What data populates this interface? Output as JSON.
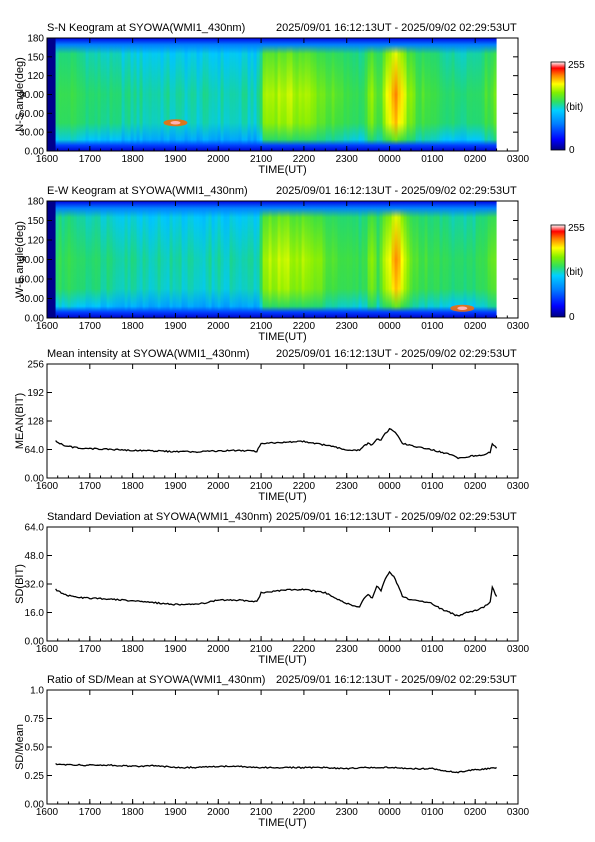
{
  "time_range": "2025/09/01 16:12:13UT - 2025/09/02 02:29:53UT",
  "x_ticks": [
    "1600",
    "1700",
    "1800",
    "1900",
    "2000",
    "2100",
    "2200",
    "2300",
    "0000",
    "0100",
    "0200",
    "0300"
  ],
  "x_label": "TIME(UT)",
  "colors": {
    "line": "#000000",
    "colormap": [
      "#000080",
      "#0000ff",
      "#0080ff",
      "#00c8ff",
      "#20d878",
      "#40e040",
      "#90f000",
      "#ffff00",
      "#ff8000",
      "#ff0000",
      "#ffffff"
    ]
  },
  "chart_data": [
    {
      "type": "heatmap",
      "title": "S-N Keogram at SYOWA(WMI1_430nm)",
      "xlabel": "TIME(UT)",
      "ylabel": "N-S angle(deg)",
      "y_ticks": [
        "0.00",
        "30.00",
        "60.00",
        "90.00",
        "120",
        "150",
        "180"
      ],
      "xlim": [
        16.0,
        27.0
      ],
      "ylim": [
        0,
        180
      ],
      "colorbar": {
        "min": "0",
        "max": "255",
        "unit": "(bit)"
      },
      "data_start": 16.2,
      "data_end": 26.5,
      "brightness_profile": [
        [
          16.2,
          0.45
        ],
        [
          16.5,
          0.48
        ],
        [
          17.0,
          0.42
        ],
        [
          18.0,
          0.38
        ],
        [
          19.0,
          0.36
        ],
        [
          20.0,
          0.36
        ],
        [
          20.95,
          0.36
        ],
        [
          21.0,
          0.62
        ],
        [
          21.5,
          0.64
        ],
        [
          22.0,
          0.62
        ],
        [
          22.5,
          0.55
        ],
        [
          23.0,
          0.48
        ],
        [
          23.4,
          0.46
        ],
        [
          23.5,
          0.62
        ],
        [
          23.7,
          0.5
        ],
        [
          23.9,
          0.66
        ],
        [
          24.1,
          0.8
        ],
        [
          24.3,
          0.66
        ],
        [
          24.6,
          0.52
        ],
        [
          25.0,
          0.48
        ],
        [
          25.5,
          0.42
        ],
        [
          26.0,
          0.44
        ],
        [
          26.4,
          0.55
        ],
        [
          26.5,
          0.6
        ]
      ],
      "hotspot": {
        "x": 19.0,
        "y": 45
      }
    },
    {
      "type": "heatmap",
      "title": "E-W Keogram at SYOWA(WMI1_430nm)",
      "xlabel": "TIME(UT)",
      "ylabel": "W-E angle(deg)",
      "y_ticks": [
        "0.00",
        "30.00",
        "60.00",
        "90.00",
        "120",
        "150",
        "180"
      ],
      "xlim": [
        16.0,
        27.0
      ],
      "ylim": [
        0,
        180
      ],
      "colorbar": {
        "min": "0",
        "max": "255",
        "unit": "(bit)"
      },
      "data_start": 16.2,
      "data_end": 26.5,
      "brightness_profile": [
        [
          16.2,
          0.45
        ],
        [
          16.5,
          0.47
        ],
        [
          17.0,
          0.42
        ],
        [
          18.0,
          0.38
        ],
        [
          19.0,
          0.36
        ],
        [
          20.0,
          0.36
        ],
        [
          20.95,
          0.36
        ],
        [
          21.0,
          0.62
        ],
        [
          21.5,
          0.64
        ],
        [
          22.0,
          0.62
        ],
        [
          22.5,
          0.55
        ],
        [
          23.0,
          0.48
        ],
        [
          23.4,
          0.46
        ],
        [
          23.5,
          0.62
        ],
        [
          23.7,
          0.5
        ],
        [
          23.9,
          0.66
        ],
        [
          24.1,
          0.8
        ],
        [
          24.3,
          0.66
        ],
        [
          24.6,
          0.52
        ],
        [
          25.0,
          0.48
        ],
        [
          25.5,
          0.42
        ],
        [
          26.0,
          0.44
        ],
        [
          26.4,
          0.55
        ],
        [
          26.5,
          0.6
        ]
      ],
      "hotspot": {
        "x": 25.7,
        "y": 15
      }
    },
    {
      "type": "line",
      "title": "Mean intensity at SYOWA(WMI1_430nm)",
      "xlabel": "TIME(UT)",
      "ylabel": "MEAN(BIT)",
      "y_ticks": [
        "0.00",
        "64.0",
        "128",
        "192",
        "256"
      ],
      "xlim": [
        16.0,
        27.0
      ],
      "ylim": [
        0,
        256
      ],
      "x": [
        16.2,
        16.4,
        16.7,
        17.0,
        17.5,
        18.0,
        18.5,
        19.0,
        19.5,
        20.0,
        20.5,
        20.9,
        21.0,
        21.5,
        22.0,
        22.5,
        23.0,
        23.3,
        23.4,
        23.5,
        23.6,
        23.7,
        23.8,
        23.9,
        24.0,
        24.1,
        24.2,
        24.3,
        24.5,
        24.8,
        25.0,
        25.2,
        25.4,
        25.6,
        25.8,
        26.0,
        26.2,
        26.35,
        26.4,
        26.5
      ],
      "y": [
        83,
        72,
        68,
        66,
        64,
        62,
        61,
        59,
        59,
        61,
        62,
        60,
        77,
        80,
        82,
        74,
        63,
        62,
        72,
        78,
        74,
        88,
        84,
        100,
        110,
        106,
        95,
        78,
        73,
        67,
        63,
        58,
        54,
        44,
        48,
        50,
        52,
        58,
        76,
        67
      ]
    },
    {
      "type": "line",
      "title": "Standard Deviation at SYOWA(WMI1_430nm)",
      "xlabel": "TIME(UT)",
      "ylabel": "SD(BIT)",
      "y_ticks": [
        "0.00",
        "16.0",
        "32.0",
        "48.0",
        "64.0"
      ],
      "xlim": [
        16.0,
        27.0
      ],
      "ylim": [
        0,
        64
      ],
      "x": [
        16.2,
        16.4,
        16.7,
        17.0,
        17.5,
        18.0,
        18.5,
        19.0,
        19.5,
        20.0,
        20.5,
        20.9,
        21.0,
        21.5,
        22.0,
        22.5,
        23.0,
        23.3,
        23.4,
        23.5,
        23.6,
        23.7,
        23.8,
        23.9,
        24.0,
        24.1,
        24.2,
        24.3,
        24.5,
        24.8,
        25.0,
        25.2,
        25.4,
        25.6,
        25.8,
        26.0,
        26.2,
        26.35,
        26.4,
        26.5
      ],
      "y": [
        29,
        26,
        24.5,
        24,
        23.5,
        22.5,
        21.5,
        20.5,
        20.5,
        23,
        23,
        22,
        27,
        28.5,
        29,
        27,
        21,
        19,
        24,
        26,
        24,
        31,
        28,
        35,
        39,
        36,
        31,
        25,
        23,
        22,
        21,
        18,
        16,
        14,
        16,
        17,
        19,
        22,
        30,
        25
      ]
    },
    {
      "type": "line",
      "title": "Ratio of SD/Mean at SYOWA(WMI1_430nm)",
      "xlabel": "TIME(UT)",
      "ylabel": "SD/Mean",
      "y_ticks": [
        "0.00",
        "0.25",
        "0.50",
        "0.75",
        "1.0"
      ],
      "xlim": [
        16.0,
        27.0
      ],
      "ylim": [
        0,
        1.0
      ],
      "x": [
        16.2,
        16.5,
        17.0,
        17.5,
        18.0,
        18.5,
        19.0,
        19.5,
        20.0,
        20.5,
        21.0,
        21.5,
        22.0,
        22.5,
        23.0,
        23.5,
        24.0,
        24.5,
        25.0,
        25.3,
        25.6,
        26.0,
        26.3,
        26.5
      ],
      "y": [
        0.35,
        0.345,
        0.34,
        0.34,
        0.33,
        0.335,
        0.32,
        0.32,
        0.33,
        0.33,
        0.32,
        0.32,
        0.32,
        0.32,
        0.31,
        0.32,
        0.32,
        0.31,
        0.31,
        0.29,
        0.28,
        0.3,
        0.31,
        0.32
      ]
    }
  ]
}
